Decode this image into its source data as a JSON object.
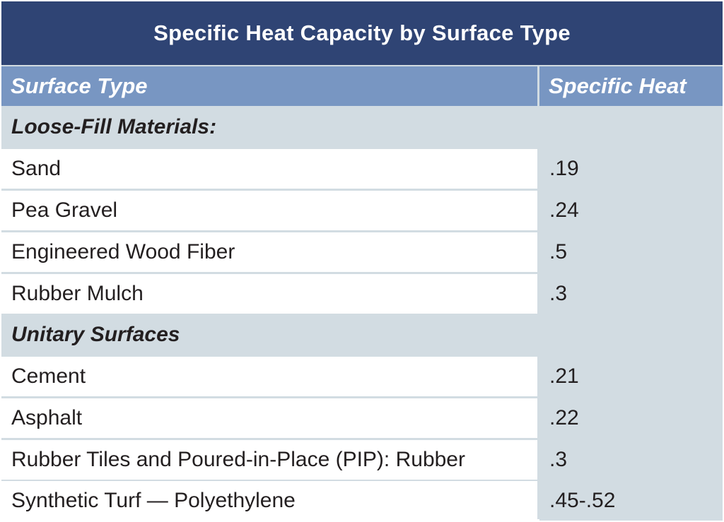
{
  "title": "Specific Heat Capacity by Surface Type",
  "columns": {
    "surface_type": "Surface Type",
    "specific_heat": "Specific Heat"
  },
  "sections": [
    {
      "label": "Loose-Fill Materials:",
      "rows": [
        {
          "surface": "Sand",
          "value": ".19"
        },
        {
          "surface": "Pea Gravel",
          "value": ".24"
        },
        {
          "surface": "Engineered Wood Fiber",
          "value": ".5"
        },
        {
          "surface": "Rubber Mulch",
          "value": ".3"
        }
      ]
    },
    {
      "label": "Unitary Surfaces",
      "rows": [
        {
          "surface": "Cement",
          "value": ".21"
        },
        {
          "surface": "Asphalt",
          "value": ".22"
        },
        {
          "surface": "Rubber Tiles and Poured-in-Place (PIP):  Rubber",
          "value": ".3"
        },
        {
          "surface": "Synthetic Turf — Polyethylene",
          "value": ".45-.52"
        }
      ]
    }
  ],
  "colors": {
    "title_bg": "#2f4474",
    "header_bg": "#7896c2",
    "light_fill": "#d2dce2",
    "white_fill": "#ffffff"
  }
}
